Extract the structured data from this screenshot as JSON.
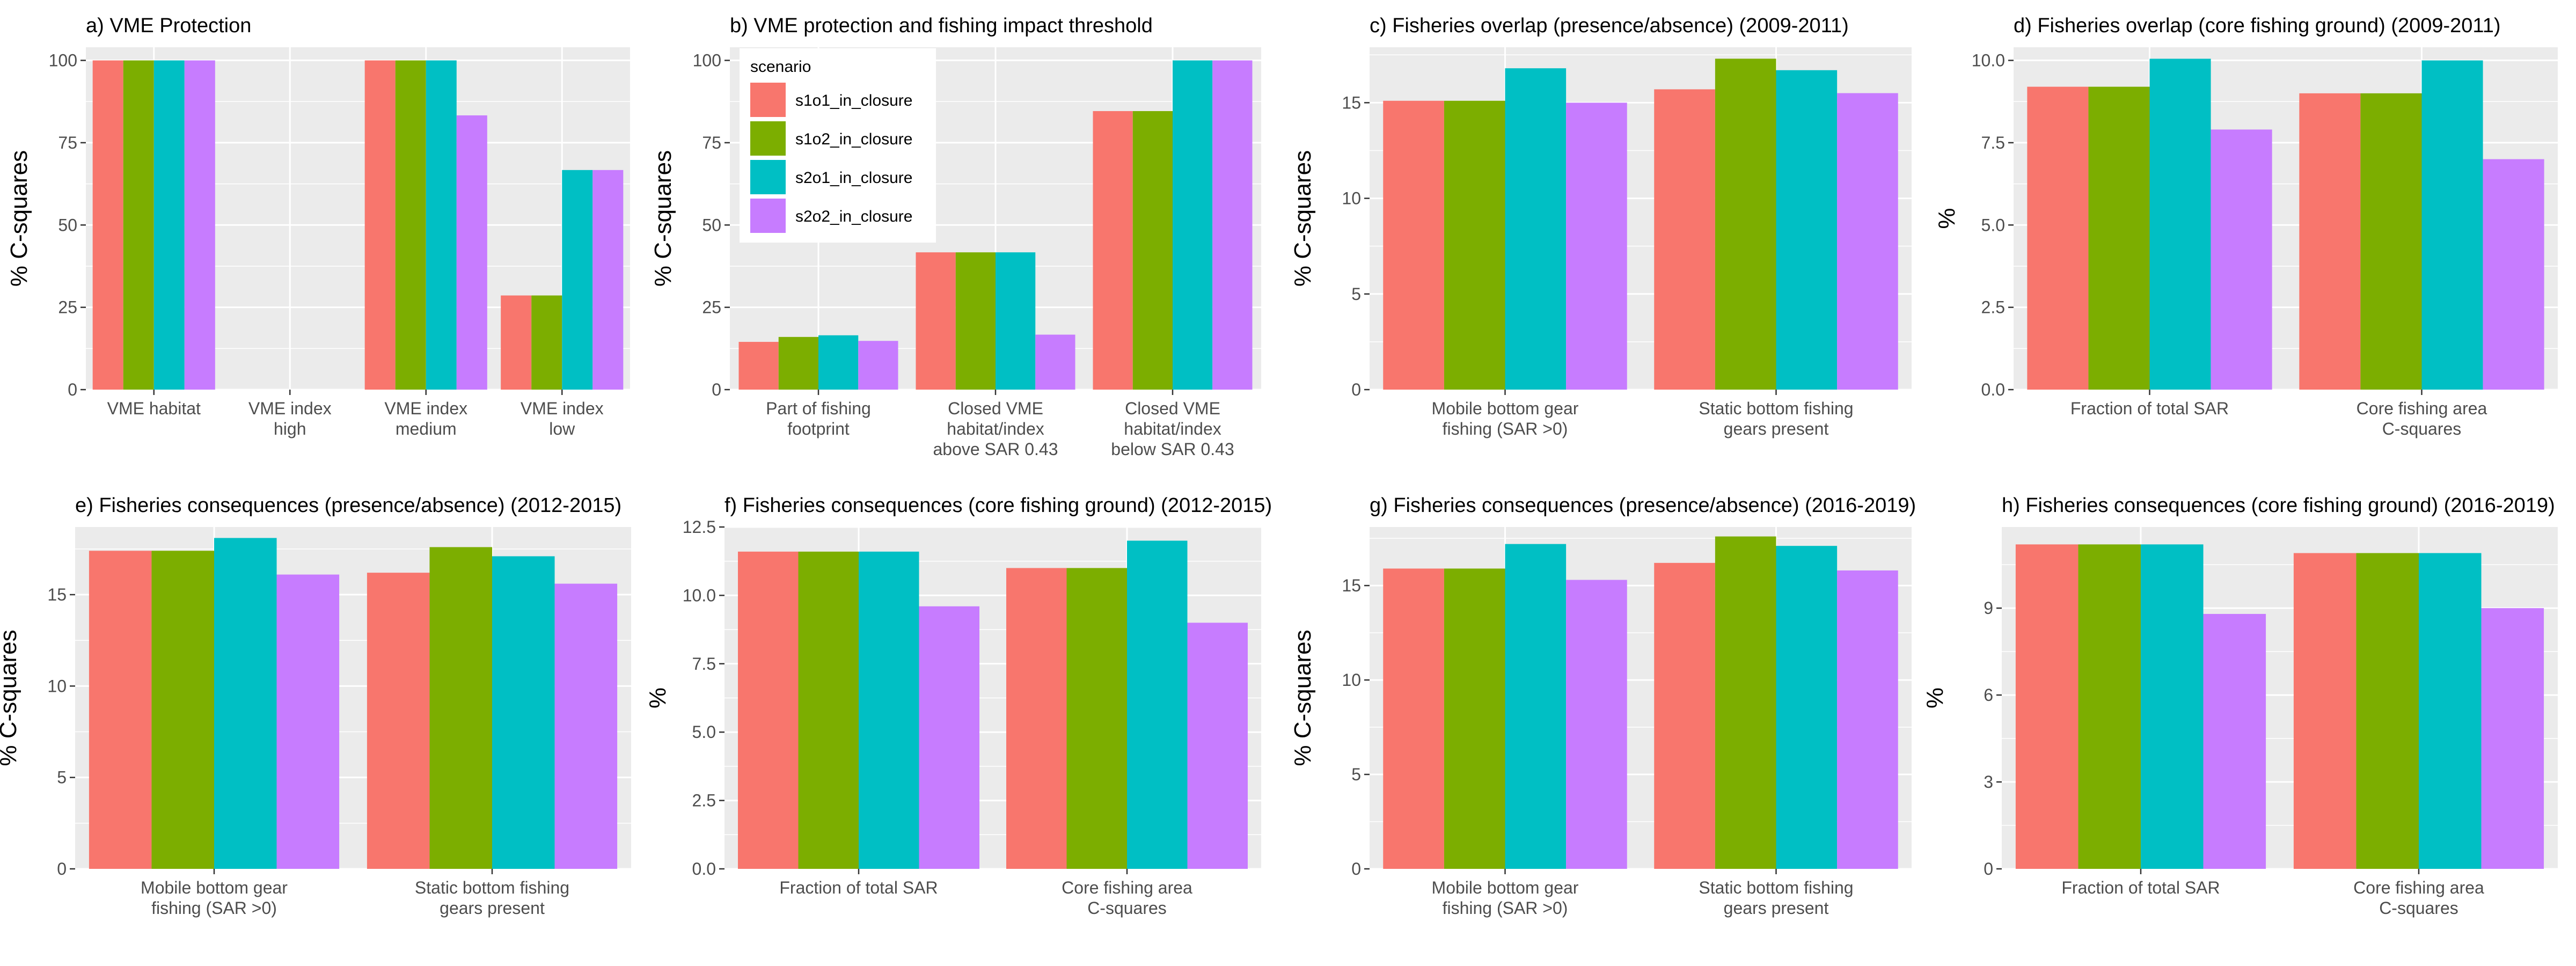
{
  "figure": {
    "colors": {
      "s1o1_in_closure": "#F8766D",
      "s1o2_in_closure": "#7CAE00",
      "s2o1_in_closure": "#00BFC4",
      "s2o2_in_closure": "#C77CFF",
      "panel_background": "#EBEBEB",
      "grid": "#FFFFFF"
    },
    "legend": {
      "title": "scenario",
      "entries": [
        "s1o1_in_closure",
        "s1o2_in_closure",
        "s2o1_in_closure",
        "s2o2_in_closure"
      ]
    }
  },
  "chart_data": [
    {
      "type": "bar",
      "title": "a) VME Protection",
      "ylabel": "% C-squares",
      "xlabel": "",
      "ylim": [
        0,
        104
      ],
      "yticks": [
        0,
        25,
        50,
        75,
        100
      ],
      "categories": [
        [
          "VME habitat"
        ],
        [
          "VME index",
          "high"
        ],
        [
          "VME index",
          "medium"
        ],
        [
          "VME index",
          "low"
        ]
      ],
      "series": [
        {
          "name": "s1o1_in_closure",
          "values": [
            100,
            0,
            100,
            28.6
          ]
        },
        {
          "name": "s1o2_in_closure",
          "values": [
            100,
            0,
            100,
            28.6
          ]
        },
        {
          "name": "s2o1_in_closure",
          "values": [
            100,
            0,
            100,
            66.7
          ]
        },
        {
          "name": "s2o2_in_closure",
          "values": [
            100,
            0,
            83.3,
            66.7
          ]
        }
      ],
      "grid": true,
      "legend": "none"
    },
    {
      "type": "bar",
      "title": "b) VME protection and fishing impact threshold",
      "ylabel": "% C-squares",
      "xlabel": "",
      "ylim": [
        0,
        104
      ],
      "yticks": [
        0,
        25,
        50,
        75,
        100
      ],
      "categories": [
        [
          "Part of fishing",
          "footprint"
        ],
        [
          "Closed VME",
          "habitat/index",
          "above SAR 0.43"
        ],
        [
          "Closed VME",
          "habitat/index",
          "below SAR 0.43"
        ]
      ],
      "series": [
        {
          "name": "s1o1_in_closure",
          "values": [
            14.5,
            41.7,
            84.6
          ]
        },
        {
          "name": "s1o2_in_closure",
          "values": [
            16,
            41.7,
            84.6
          ]
        },
        {
          "name": "s2o1_in_closure",
          "values": [
            16.5,
            41.7,
            100
          ]
        },
        {
          "name": "s2o2_in_closure",
          "values": [
            14.8,
            16.7,
            100
          ]
        }
      ],
      "grid": true,
      "legend": "top-left inside"
    },
    {
      "type": "bar",
      "title": "c) Fisheries overlap (presence/absence) (2009-2011)",
      "ylabel": "% C-squares",
      "xlabel": "",
      "ylim": [
        0,
        17.9
      ],
      "yticks": [
        0,
        5,
        10,
        15
      ],
      "categories": [
        [
          "Mobile bottom gear",
          "fishing (SAR >0)"
        ],
        [
          "Static bottom fishing",
          "gears present"
        ]
      ],
      "series": [
        {
          "name": "s1o1_in_closure",
          "values": [
            15.1,
            15.7
          ]
        },
        {
          "name": "s1o2_in_closure",
          "values": [
            15.1,
            17.3
          ]
        },
        {
          "name": "s2o1_in_closure",
          "values": [
            16.8,
            16.7
          ]
        },
        {
          "name": "s2o2_in_closure",
          "values": [
            15,
            15.5
          ]
        }
      ],
      "grid": true,
      "legend": "none"
    },
    {
      "type": "bar",
      "title": "d) Fisheries overlap (core fishing ground) (2009-2011)",
      "ylabel": "%",
      "xlabel": "",
      "ylim": [
        0,
        10.4
      ],
      "yticks": [
        0,
        2.5,
        5,
        7.5,
        10
      ],
      "tick_format": "fixed1",
      "categories": [
        [
          "Fraction of total SAR"
        ],
        [
          "Core fishing area",
          "C-squares"
        ]
      ],
      "series": [
        {
          "name": "s1o1_in_closure",
          "values": [
            9.2,
            9
          ]
        },
        {
          "name": "s1o2_in_closure",
          "values": [
            9.2,
            9
          ]
        },
        {
          "name": "s2o1_in_closure",
          "values": [
            10.05,
            10
          ]
        },
        {
          "name": "s2o2_in_closure",
          "values": [
            7.9,
            7
          ]
        }
      ],
      "grid": true,
      "legend": "none"
    },
    {
      "type": "bar",
      "title": "e) Fisheries consequences (presence/absence) (2012-2015)",
      "ylabel": "% C-squares",
      "xlabel": "",
      "ylim": [
        0,
        18.7
      ],
      "yticks": [
        0,
        5,
        10,
        15
      ],
      "categories": [
        [
          "Mobile bottom gear",
          "fishing (SAR >0)"
        ],
        [
          "Static bottom fishing",
          "gears present"
        ]
      ],
      "series": [
        {
          "name": "s1o1_in_closure",
          "values": [
            17.4,
            16.2
          ]
        },
        {
          "name": "s1o2_in_closure",
          "values": [
            17.4,
            17.6
          ]
        },
        {
          "name": "s2o1_in_closure",
          "values": [
            18.1,
            17.1
          ]
        },
        {
          "name": "s2o2_in_closure",
          "values": [
            16.1,
            15.6
          ]
        }
      ],
      "grid": true,
      "legend": "none"
    },
    {
      "type": "bar",
      "title": "f) Fisheries consequences (core fishing ground) (2012-2015)",
      "ylabel": "%",
      "xlabel": "",
      "ylim": [
        0,
        12.5
      ],
      "yticks": [
        0,
        2.5,
        5,
        7.5,
        10,
        12.5
      ],
      "tick_format": "fixed1",
      "categories": [
        [
          "Fraction of total SAR"
        ],
        [
          "Core fishing area",
          "C-squares"
        ]
      ],
      "series": [
        {
          "name": "s1o1_in_closure",
          "values": [
            11.6,
            11
          ]
        },
        {
          "name": "s1o2_in_closure",
          "values": [
            11.6,
            11
          ]
        },
        {
          "name": "s2o1_in_closure",
          "values": [
            11.6,
            12
          ]
        },
        {
          "name": "s2o2_in_closure",
          "values": [
            9.6,
            9
          ]
        }
      ],
      "grid": true,
      "legend": "none"
    },
    {
      "type": "bar",
      "title": "g) Fisheries consequences (presence/absence) (2016-2019)",
      "ylabel": "% C-squares",
      "xlabel": "",
      "ylim": [
        0,
        18.1
      ],
      "yticks": [
        0,
        5,
        10,
        15
      ],
      "categories": [
        [
          "Mobile bottom gear",
          "fishing (SAR >0)"
        ],
        [
          "Static bottom fishing",
          "gears present"
        ]
      ],
      "series": [
        {
          "name": "s1o1_in_closure",
          "values": [
            15.9,
            16.2
          ]
        },
        {
          "name": "s1o2_in_closure",
          "values": [
            15.9,
            17.6
          ]
        },
        {
          "name": "s2o1_in_closure",
          "values": [
            17.2,
            17.1
          ]
        },
        {
          "name": "s2o2_in_closure",
          "values": [
            15.3,
            15.8
          ]
        }
      ],
      "grid": true,
      "legend": "none"
    },
    {
      "type": "bar",
      "title": "h) Fisheries consequences (core fishing ground) (2016-2019)",
      "ylabel": "%",
      "xlabel": "",
      "ylim": [
        0,
        11.8
      ],
      "yticks": [
        0,
        3,
        6,
        9
      ],
      "categories": [
        [
          "Fraction of total SAR"
        ],
        [
          "Core fishing area",
          "C-squares"
        ]
      ],
      "series": [
        {
          "name": "s1o1_in_closure",
          "values": [
            11.2,
            10.9
          ]
        },
        {
          "name": "s1o2_in_closure",
          "values": [
            11.2,
            10.9
          ]
        },
        {
          "name": "s2o1_in_closure",
          "values": [
            11.2,
            10.9
          ]
        },
        {
          "name": "s2o2_in_closure",
          "values": [
            8.8,
            9
          ]
        }
      ],
      "grid": true,
      "legend": "none"
    }
  ]
}
